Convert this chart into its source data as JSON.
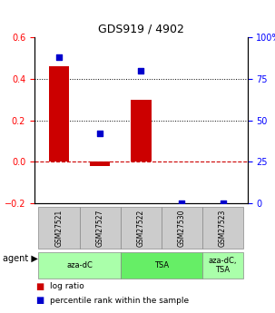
{
  "title": "GDS919 / 4902",
  "samples": [
    "GSM27521",
    "GSM27527",
    "GSM27522",
    "GSM27530",
    "GSM27523"
  ],
  "log_ratios": [
    0.46,
    -0.02,
    0.3,
    0.0,
    0.0
  ],
  "percentile_ranks": [
    88,
    42,
    80,
    0,
    0
  ],
  "bar_color": "#cc0000",
  "dot_color": "#0000cc",
  "ylim_left": [
    -0.2,
    0.6
  ],
  "ylim_right": [
    0,
    100
  ],
  "yticks_left": [
    -0.2,
    0.0,
    0.2,
    0.4,
    0.6
  ],
  "yticks_right": [
    0,
    25,
    50,
    75,
    100
  ],
  "ytick_labels_right": [
    "0",
    "25",
    "50",
    "75",
    "100%"
  ],
  "agent_groups": [
    {
      "label": "aza-dC",
      "cols": [
        0,
        1
      ],
      "color": "#aaffaa"
    },
    {
      "label": "TSA",
      "cols": [
        2,
        3
      ],
      "color": "#66ee66"
    },
    {
      "label": "aza-dC,\nTSA",
      "cols": [
        4
      ],
      "color": "#aaffaa"
    }
  ],
  "hline_y": 0.0,
  "hline_color": "#cc0000",
  "dotted_lines": [
    0.2,
    0.4
  ],
  "dotted_color": "black",
  "legend_items": [
    {
      "color": "#cc0000",
      "label": "log ratio"
    },
    {
      "color": "#0000cc",
      "label": "percentile rank within the sample"
    }
  ],
  "bar_width": 0.5,
  "agent_label": "agent",
  "sample_box_color": "#cccccc",
  "sample_box_border": "#888888"
}
